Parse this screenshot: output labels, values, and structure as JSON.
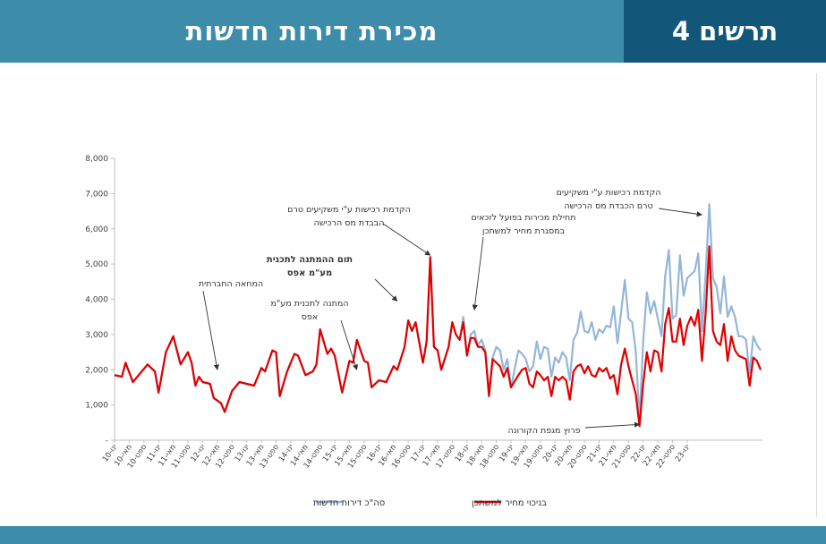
{
  "header": {
    "title": "מכירת דירות חדשות",
    "figure": "תרשים 4"
  },
  "colors": {
    "header_left": "#3d8ca9",
    "header_right": "#12577a",
    "total_series": "#94b6d9",
    "buyer_price_series": "#e00000"
  },
  "chart_data": {
    "type": "line",
    "title": "",
    "xlabel": "",
    "ylabel": "",
    "ylim": [
      0,
      8000
    ],
    "yticks": [
      0,
      1000,
      2000,
      3000,
      4000,
      5000,
      6000,
      7000,
      8000
    ],
    "ytick_labels": [
      "-",
      "1,000",
      "2,000",
      "3,000",
      "4,000",
      "5,000",
      "6,000",
      "7,000",
      "8,000"
    ],
    "xtick_labels": [
      "ינו-10",
      "מאי-10",
      "ספט-10",
      "ינו-11",
      "מאי-11",
      "ספט-11",
      "ינו-12",
      "מאי-12",
      "ספט-12",
      "ינו-13",
      "מאי-13",
      "ספט-13",
      "ינו-14",
      "מאי-14",
      "ספט-14",
      "ינו-15",
      "מאי-15",
      "ספט-15",
      "ינו-16",
      "מאי-16",
      "ספט-16",
      "ינו-17",
      "מאי-17",
      "ספט-17",
      "ינו-18",
      "מאי-18",
      "ספט-18",
      "ינו-19",
      "מאי-19",
      "ספט-19",
      "ינו-20",
      "מאי-20",
      "ספט-20",
      "ינו-21",
      "מאי-21",
      "ספט-21",
      "ינו-22",
      "מאי-22",
      "ספט-22",
      "ינו-23"
    ],
    "x_months": 157,
    "legend_position": "bottom",
    "series": [
      {
        "name": "סה\"כ דירות חדשות",
        "points": [
          [
            0,
            1850
          ],
          [
            2,
            1800
          ],
          [
            3,
            2200
          ],
          [
            5,
            1650
          ],
          [
            7,
            1900
          ],
          [
            9,
            2150
          ],
          [
            11,
            1950
          ],
          [
            12,
            1350
          ],
          [
            14,
            2500
          ],
          [
            16,
            2950
          ],
          [
            18,
            2150
          ],
          [
            20,
            2500
          ],
          [
            21,
            2200
          ],
          [
            22,
            1550
          ],
          [
            23,
            1800
          ],
          [
            24,
            1650
          ],
          [
            26,
            1600
          ],
          [
            27,
            1200
          ],
          [
            29,
            1050
          ],
          [
            30,
            800
          ],
          [
            32,
            1400
          ],
          [
            34,
            1650
          ],
          [
            36,
            1600
          ],
          [
            38,
            1550
          ],
          [
            40,
            2050
          ],
          [
            41,
            1950
          ],
          [
            43,
            2550
          ],
          [
            44,
            2500
          ],
          [
            45,
            1250
          ],
          [
            47,
            1950
          ],
          [
            49,
            2450
          ],
          [
            50,
            2400
          ],
          [
            52,
            1850
          ],
          [
            54,
            1950
          ],
          [
            55,
            2150
          ],
          [
            56,
            3100
          ],
          [
            58,
            2450
          ],
          [
            59,
            2600
          ],
          [
            60,
            2400
          ],
          [
            62,
            1350
          ],
          [
            64,
            2250
          ],
          [
            65,
            2200
          ],
          [
            66,
            2850
          ],
          [
            68,
            2250
          ],
          [
            69,
            2200
          ],
          [
            70,
            1500
          ],
          [
            72,
            1700
          ],
          [
            74,
            1650
          ],
          [
            76,
            2100
          ],
          [
            77,
            2000
          ],
          [
            79,
            2650
          ],
          [
            80,
            3400
          ],
          [
            81,
            3100
          ],
          [
            82,
            3350
          ],
          [
            84,
            2200
          ],
          [
            85,
            2800
          ],
          [
            86,
            5200
          ],
          [
            87,
            2650
          ],
          [
            88,
            2550
          ],
          [
            89,
            2000
          ],
          [
            91,
            2650
          ],
          [
            92,
            3350
          ],
          [
            93,
            3000
          ],
          [
            94,
            2850
          ],
          [
            95,
            3500
          ],
          [
            96,
            2400
          ],
          [
            97,
            3000
          ],
          [
            98,
            3100
          ],
          [
            99,
            2700
          ],
          [
            100,
            2850
          ],
          [
            101,
            2550
          ],
          [
            102,
            1350
          ],
          [
            103,
            2350
          ],
          [
            104,
            2650
          ],
          [
            105,
            2550
          ],
          [
            106,
            2000
          ],
          [
            107,
            2300
          ],
          [
            108,
            1500
          ],
          [
            110,
            2550
          ],
          [
            111,
            2450
          ],
          [
            112,
            2300
          ],
          [
            113,
            1950
          ],
          [
            114,
            2100
          ],
          [
            115,
            2800
          ],
          [
            116,
            2300
          ],
          [
            117,
            2650
          ],
          [
            118,
            2600
          ],
          [
            119,
            1800
          ],
          [
            120,
            2350
          ],
          [
            121,
            2200
          ],
          [
            122,
            2500
          ],
          [
            123,
            2350
          ],
          [
            124,
            1700
          ],
          [
            125,
            2850
          ],
          [
            126,
            3050
          ],
          [
            127,
            3650
          ],
          [
            128,
            3100
          ],
          [
            129,
            3050
          ],
          [
            130,
            3350
          ],
          [
            131,
            2850
          ],
          [
            132,
            3150
          ],
          [
            133,
            3050
          ],
          [
            134,
            3250
          ],
          [
            135,
            3200
          ],
          [
            136,
            3800
          ],
          [
            137,
            2750
          ],
          [
            138,
            3650
          ],
          [
            139,
            4550
          ],
          [
            140,
            3450
          ],
          [
            141,
            3350
          ],
          [
            142,
            2500
          ],
          [
            143,
            550
          ],
          [
            144,
            2800
          ],
          [
            145,
            4200
          ],
          [
            146,
            3600
          ],
          [
            147,
            3950
          ],
          [
            148,
            3450
          ],
          [
            149,
            2950
          ],
          [
            150,
            4650
          ],
          [
            151,
            5400
          ],
          [
            152,
            3450
          ],
          [
            153,
            3550
          ],
          [
            154,
            5250
          ],
          [
            155,
            4100
          ],
          [
            156,
            4600
          ],
          [
            157,
            4700
          ],
          [
            158,
            4800
          ],
          [
            159,
            5300
          ],
          [
            160,
            3100
          ],
          [
            161,
            4700
          ],
          [
            162,
            6700
          ],
          [
            163,
            4600
          ],
          [
            164,
            4350
          ],
          [
            165,
            3600
          ],
          [
            166,
            4650
          ],
          [
            167,
            3500
          ],
          [
            168,
            3800
          ],
          [
            169,
            3500
          ],
          [
            170,
            2950
          ],
          [
            171,
            2950
          ],
          [
            172,
            2850
          ],
          [
            173,
            1900
          ],
          [
            174,
            2950
          ],
          [
            175,
            2700
          ],
          [
            176,
            2550
          ]
        ]
      },
      {
        "name": "בניכוי מחיר למשתכן",
        "points": [
          [
            0,
            1850
          ],
          [
            2,
            1800
          ],
          [
            3,
            2200
          ],
          [
            5,
            1650
          ],
          [
            7,
            1900
          ],
          [
            9,
            2150
          ],
          [
            11,
            1950
          ],
          [
            12,
            1350
          ],
          [
            14,
            2500
          ],
          [
            16,
            2950
          ],
          [
            18,
            2150
          ],
          [
            20,
            2500
          ],
          [
            21,
            2200
          ],
          [
            22,
            1550
          ],
          [
            23,
            1800
          ],
          [
            24,
            1650
          ],
          [
            26,
            1600
          ],
          [
            27,
            1200
          ],
          [
            29,
            1050
          ],
          [
            30,
            800
          ],
          [
            32,
            1400
          ],
          [
            34,
            1650
          ],
          [
            36,
            1600
          ],
          [
            38,
            1550
          ],
          [
            40,
            2050
          ],
          [
            41,
            1950
          ],
          [
            43,
            2550
          ],
          [
            44,
            2500
          ],
          [
            45,
            1250
          ],
          [
            47,
            1950
          ],
          [
            49,
            2450
          ],
          [
            50,
            2400
          ],
          [
            52,
            1850
          ],
          [
            54,
            1950
          ],
          [
            55,
            2150
          ],
          [
            56,
            3150
          ],
          [
            58,
            2450
          ],
          [
            59,
            2600
          ],
          [
            60,
            2400
          ],
          [
            62,
            1350
          ],
          [
            64,
            2250
          ],
          [
            65,
            2200
          ],
          [
            66,
            2850
          ],
          [
            68,
            2250
          ],
          [
            69,
            2200
          ],
          [
            70,
            1500
          ],
          [
            72,
            1700
          ],
          [
            74,
            1650
          ],
          [
            76,
            2100
          ],
          [
            77,
            2000
          ],
          [
            79,
            2650
          ],
          [
            80,
            3400
          ],
          [
            81,
            3100
          ],
          [
            82,
            3350
          ],
          [
            84,
            2200
          ],
          [
            85,
            2800
          ],
          [
            86,
            5200
          ],
          [
            87,
            2650
          ],
          [
            88,
            2550
          ],
          [
            89,
            2000
          ],
          [
            91,
            2650
          ],
          [
            92,
            3350
          ],
          [
            93,
            3000
          ],
          [
            94,
            2850
          ],
          [
            95,
            3350
          ],
          [
            96,
            2400
          ],
          [
            97,
            2900
          ],
          [
            98,
            2900
          ],
          [
            99,
            2650
          ],
          [
            100,
            2650
          ],
          [
            101,
            2500
          ],
          [
            102,
            1250
          ],
          [
            103,
            2300
          ],
          [
            104,
            2200
          ],
          [
            105,
            2100
          ],
          [
            106,
            1800
          ],
          [
            107,
            2050
          ],
          [
            108,
            1500
          ],
          [
            110,
            1850
          ],
          [
            111,
            2000
          ],
          [
            112,
            2050
          ],
          [
            113,
            1600
          ],
          [
            114,
            1500
          ],
          [
            115,
            1950
          ],
          [
            116,
            1850
          ],
          [
            117,
            1700
          ],
          [
            118,
            1800
          ],
          [
            119,
            1250
          ],
          [
            120,
            1800
          ],
          [
            121,
            1700
          ],
          [
            122,
            1800
          ],
          [
            123,
            1700
          ],
          [
            124,
            1150
          ],
          [
            125,
            1950
          ],
          [
            126,
            2100
          ],
          [
            127,
            2150
          ],
          [
            128,
            1900
          ],
          [
            129,
            2100
          ],
          [
            130,
            1850
          ],
          [
            131,
            1800
          ],
          [
            132,
            2050
          ],
          [
            133,
            1950
          ],
          [
            134,
            2050
          ],
          [
            135,
            1750
          ],
          [
            136,
            1850
          ],
          [
            137,
            1300
          ],
          [
            138,
            2150
          ],
          [
            139,
            2600
          ],
          [
            140,
            2100
          ],
          [
            141,
            1700
          ],
          [
            142,
            1300
          ],
          [
            143,
            400
          ],
          [
            144,
            1600
          ],
          [
            145,
            2500
          ],
          [
            146,
            1950
          ],
          [
            147,
            2550
          ],
          [
            148,
            2500
          ],
          [
            149,
            1950
          ],
          [
            150,
            3300
          ],
          [
            151,
            3750
          ],
          [
            152,
            2800
          ],
          [
            153,
            2800
          ],
          [
            154,
            3450
          ],
          [
            155,
            2700
          ],
          [
            156,
            3250
          ],
          [
            157,
            3500
          ],
          [
            158,
            3250
          ],
          [
            159,
            3700
          ],
          [
            160,
            2250
          ],
          [
            161,
            3600
          ],
          [
            162,
            5500
          ],
          [
            163,
            3100
          ],
          [
            164,
            2800
          ],
          [
            165,
            2700
          ],
          [
            166,
            3300
          ],
          [
            167,
            2250
          ],
          [
            168,
            2950
          ],
          [
            169,
            2550
          ],
          [
            170,
            2400
          ],
          [
            171,
            2350
          ],
          [
            172,
            2300
          ],
          [
            173,
            1550
          ],
          [
            174,
            2350
          ],
          [
            175,
            2250
          ],
          [
            176,
            2000
          ]
        ]
      }
    ],
    "annotations": [
      {
        "lines": [
          "המחאה החברתית"
        ],
        "x": 28,
        "arrow_end": [
          28,
          2000
        ]
      },
      {
        "lines": [
          "המתנה לתכנית מע\"מ",
          "אפס"
        ],
        "x": 66,
        "arrow_end": [
          66,
          2000
        ]
      },
      {
        "lines": [
          "תום ההמתנה לתכנית",
          "מע\"מ אפס"
        ],
        "x": 77,
        "arrow_end": [
          77,
          3950
        ]
      },
      {
        "lines": [
          "הקדמת רכישות ע\"י משקיעים טרם",
          "הבבדת מס הרכישה"
        ],
        "x": 86,
        "arrow_end": [
          86,
          5250
        ]
      },
      {
        "lines": [
          "תחילת מכירות בפועל לזכאים",
          "במסגרת מחיר למשתכן"
        ],
        "x": 98,
        "arrow_end": [
          98,
          3700
        ]
      },
      {
        "lines": [
          "פרוץ מגפת הקורונה"
        ],
        "x": 140,
        "arrow_end": [
          143,
          450
        ]
      },
      {
        "lines": [
          "הקדמת רכישות ע\"י משקיעים",
          "טרם הכבדת מס הרכישה"
        ],
        "x": 160,
        "arrow_end": [
          160,
          6400
        ]
      }
    ]
  }
}
